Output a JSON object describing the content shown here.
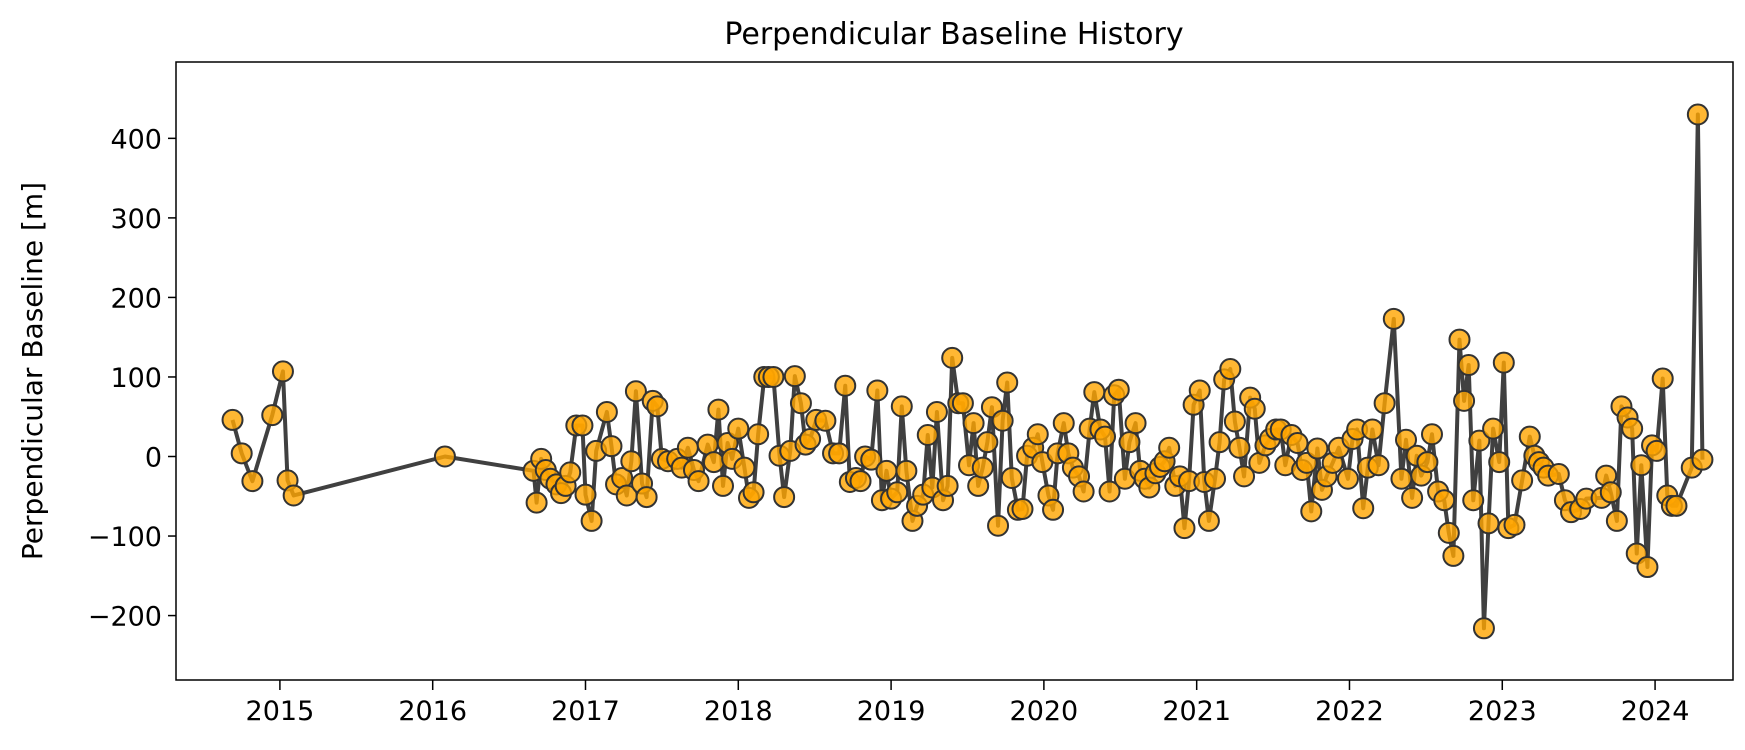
{
  "chart_data": {
    "type": "line",
    "title": "Perpendicular Baseline History",
    "ylabel": "Perpendicular Baseline [m]",
    "color": "#ffa500",
    "line_color": "#404040",
    "x": [
      2014.69,
      2014.75,
      2014.82,
      2014.95,
      2015.02,
      2015.05,
      2015.09,
      2016.08,
      2016.66,
      2016.68,
      2016.71,
      2016.74,
      2016.77,
      2016.81,
      2016.84,
      2016.87,
      2016.9,
      2016.94,
      2016.98,
      2017.0,
      2017.04,
      2017.07,
      2017.14,
      2017.17,
      2017.2,
      2017.24,
      2017.27,
      2017.3,
      2017.33,
      2017.37,
      2017.4,
      2017.44,
      2017.47,
      2017.5,
      2017.54,
      2017.6,
      2017.63,
      2017.67,
      2017.71,
      2017.74,
      2017.8,
      2017.84,
      2017.87,
      2017.9,
      2017.93,
      2017.96,
      2018.0,
      2018.04,
      2018.07,
      2018.1,
      2018.13,
      2018.17,
      2018.2,
      2018.23,
      2018.27,
      2018.3,
      2018.34,
      2018.37,
      2018.41,
      2018.44,
      2018.47,
      2018.51,
      2018.57,
      2018.62,
      2018.66,
      2018.7,
      2018.73,
      2018.77,
      2018.8,
      2018.83,
      2018.87,
      2018.91,
      2018.94,
      2018.97,
      2019.0,
      2019.04,
      2019.07,
      2019.1,
      2019.14,
      2019.17,
      2019.21,
      2019.24,
      2019.27,
      2019.3,
      2019.34,
      2019.37,
      2019.4,
      2019.44,
      2019.47,
      2019.51,
      2019.54,
      2019.57,
      2019.6,
      2019.63,
      2019.66,
      2019.7,
      2019.73,
      2019.76,
      2019.79,
      2019.83,
      2019.86,
      2019.89,
      2019.93,
      2019.96,
      2019.99,
      2020.03,
      2020.06,
      2020.09,
      2020.13,
      2020.16,
      2020.19,
      2020.23,
      2020.26,
      2020.3,
      2020.33,
      2020.37,
      2020.4,
      2020.43,
      2020.46,
      2020.49,
      2020.53,
      2020.56,
      2020.6,
      2020.63,
      2020.66,
      2020.69,
      2020.73,
      2020.76,
      2020.79,
      2020.82,
      2020.86,
      2020.89,
      2020.92,
      2020.95,
      2020.98,
      2021.02,
      2021.05,
      2021.08,
      2021.12,
      2021.15,
      2021.18,
      2021.22,
      2021.25,
      2021.28,
      2021.31,
      2021.35,
      2021.38,
      2021.41,
      2021.45,
      2021.48,
      2021.52,
      2021.55,
      2021.58,
      2021.62,
      2021.66,
      2021.69,
      2021.72,
      2021.75,
      2021.79,
      2021.82,
      2021.85,
      2021.89,
      2021.93,
      2021.99,
      2022.02,
      2022.05,
      2022.09,
      2022.12,
      2022.15,
      2022.19,
      2022.23,
      2022.29,
      2022.34,
      2022.37,
      2022.41,
      2022.44,
      2022.47,
      2022.51,
      2022.54,
      2022.58,
      2022.62,
      2022.65,
      2022.68,
      2022.72,
      2022.75,
      2022.78,
      2022.81,
      2022.85,
      2022.88,
      2022.91,
      2022.94,
      2022.98,
      2023.01,
      2023.04,
      2023.08,
      2023.13,
      2023.18,
      2023.21,
      2023.24,
      2023.27,
      2023.3,
      2023.37,
      2023.41,
      2023.45,
      2023.51,
      2023.55,
      2023.65,
      2023.68,
      2023.71,
      2023.75,
      2023.78,
      2023.82,
      2023.85,
      2023.88,
      2023.91,
      2023.95,
      2023.98,
      2024.01,
      2024.05,
      2024.08,
      2024.11,
      2024.14,
      2024.24,
      2024.28,
      2024.31
    ],
    "values": [
      46,
      4,
      -31,
      52,
      107,
      -30,
      -49,
      0,
      -18,
      -58,
      -3,
      -17,
      -28,
      -35,
      -46,
      -37,
      -20,
      39,
      39,
      -48,
      -81,
      7,
      56,
      13,
      -35,
      -27,
      -49,
      -6,
      82,
      -34,
      -51,
      70,
      63,
      -3,
      -6,
      -3,
      -14,
      11,
      -17,
      -31,
      15,
      -7,
      59,
      -37,
      17,
      -3,
      35,
      -14,
      -52,
      -45,
      28,
      100,
      100,
      100,
      1,
      -51,
      7,
      101,
      67,
      15,
      22,
      46,
      45,
      4,
      4,
      89,
      -32,
      -27,
      -31,
      0,
      -4,
      83,
      -55,
      -18,
      -53,
      -45,
      63,
      -18,
      -81,
      -62,
      -48,
      27,
      -39,
      56,
      -55,
      -37,
      124,
      67,
      67,
      -11,
      42,
      -37,
      -14,
      18,
      62,
      -87,
      45,
      93,
      -27,
      -67,
      -66,
      1,
      11,
      28,
      -7,
      -49,
      -67,
      4,
      42,
      4,
      -14,
      -25,
      -44,
      35,
      81,
      34,
      25,
      -44,
      77,
      84,
      -28,
      18,
      42,
      -18,
      -28,
      -39,
      -21,
      -13,
      -6,
      11,
      -37,
      -25,
      -90,
      -31,
      65,
      83,
      -32,
      -81,
      -28,
      18,
      97,
      110,
      44,
      11,
      -25,
      74,
      60,
      -8,
      14,
      22,
      34,
      34,
      -11,
      27,
      17,
      -17,
      -8,
      -69,
      10,
      -42,
      -25,
      -8,
      11,
      -28,
      22,
      34,
      -65,
      -14,
      34,
      -11,
      67,
      173,
      -28,
      21,
      -52,
      1,
      -24,
      -7,
      28,
      -44,
      -55,
      -96,
      -125,
      147,
      70,
      115,
      -55,
      20,
      -216,
      -84,
      35,
      -7,
      118,
      -90,
      -86,
      -30,
      25,
      1,
      -7,
      -14,
      -24,
      -22,
      -55,
      -70,
      -66,
      -53,
      -52,
      -24,
      -45,
      -81,
      63,
      49,
      35,
      -122,
      -11,
      -139,
      14,
      7,
      98,
      -49,
      -62,
      -62,
      -14,
      430,
      -4
    ],
    "xlim": [
      2014.32,
      2024.51
    ],
    "xticks": [
      2015,
      2016,
      2017,
      2018,
      2019,
      2020,
      2021,
      2022,
      2023,
      2024
    ],
    "ylim": [
      -281,
      496
    ],
    "yticks": [
      {
        "value": -200,
        "label": "−200"
      },
      {
        "value": -100,
        "label": "−100"
      },
      0,
      100,
      200,
      300,
      400
    ]
  }
}
